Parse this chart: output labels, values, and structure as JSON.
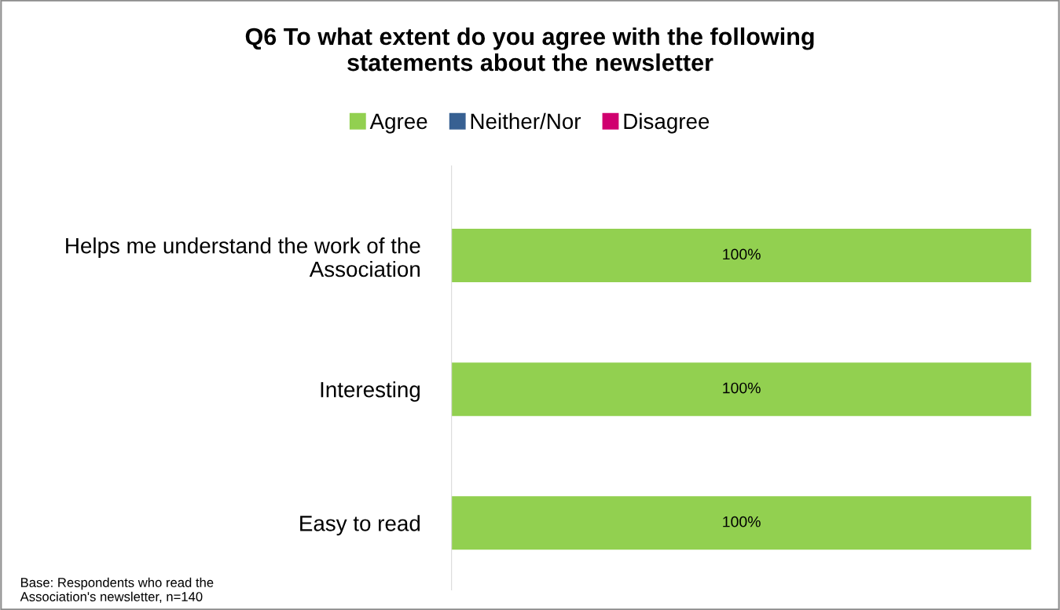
{
  "chart_data": {
    "type": "bar",
    "orientation": "horizontal",
    "title": "Q6 To what extent do you agree with the following\nstatements about the newsletter",
    "categories": [
      "Helps me understand the work of the\nAssociation",
      "Interesting",
      "Easy to read"
    ],
    "series": [
      {
        "name": "Agree",
        "color": "#92d050",
        "values": [
          100,
          100,
          100
        ],
        "value_labels": [
          "100%",
          "100%",
          "100%"
        ]
      },
      {
        "name": "Neither/Nor",
        "color": "#376092",
        "values": [
          0,
          0,
          0
        ]
      },
      {
        "name": "Disagree",
        "color": "#d0006f",
        "values": [
          0,
          0,
          0
        ]
      }
    ],
    "tick_labels": "y",
    "grid": false,
    "legend": "top",
    "annotations": [
      "Base: Respondents who read the\nAssociation's newsletter, n=140"
    ]
  }
}
